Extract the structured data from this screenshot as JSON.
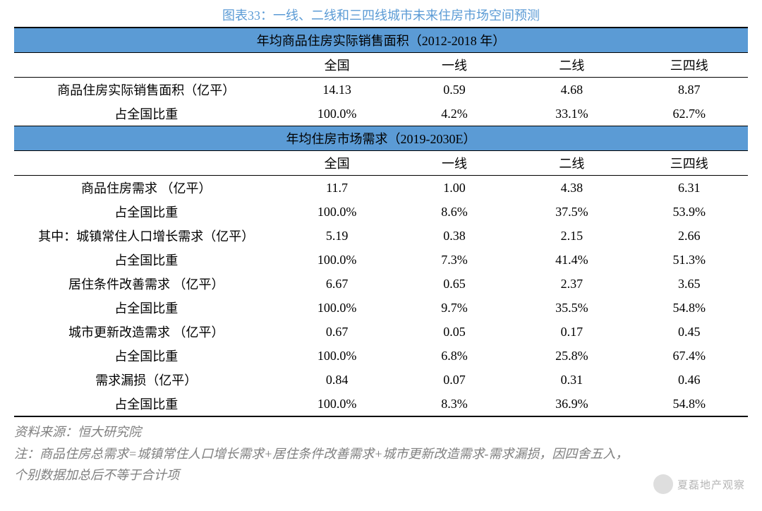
{
  "title": "图表33：一线、二线和三四线城市未来住房市场空间预测",
  "colors": {
    "header_bg": "#5b9bd5",
    "title_color": "#5b9bd5",
    "text": "#000000",
    "source_text": "#808080",
    "background": "#ffffff"
  },
  "columns": [
    "",
    "全国",
    "一线",
    "二线",
    "三四线"
  ],
  "section1": {
    "header": "年均商品住房实际销售面积（2012-2018 年）",
    "rows": [
      {
        "label": "商品住房实际销售面积（亿平）",
        "vals": [
          "14.13",
          "0.59",
          "4.68",
          "8.87"
        ]
      },
      {
        "label": "占全国比重",
        "vals": [
          "100.0%",
          "4.2%",
          "33.1%",
          "62.7%"
        ]
      }
    ]
  },
  "section2": {
    "header": "年均住房市场需求（2019-2030E）",
    "rows": [
      {
        "label": "商品住房需求 （亿平）",
        "vals": [
          "11.7",
          "1.00",
          "4.38",
          "6.31"
        ]
      },
      {
        "label": "占全国比重",
        "vals": [
          "100.0%",
          "8.6%",
          "37.5%",
          "53.9%"
        ]
      },
      {
        "label": "其中：城镇常住人口增长需求（亿平）",
        "vals": [
          "5.19",
          "0.38",
          "2.15",
          "2.66"
        ]
      },
      {
        "label": "占全国比重",
        "vals": [
          "100.0%",
          "7.3%",
          "41.4%",
          "51.3%"
        ]
      },
      {
        "label": "居住条件改善需求 （亿平）",
        "vals": [
          "6.67",
          "0.65",
          "2.37",
          "3.65"
        ]
      },
      {
        "label": "占全国比重",
        "vals": [
          "100.0%",
          "9.7%",
          "35.5%",
          "54.8%"
        ]
      },
      {
        "label": "城市更新改造需求 （亿平）",
        "vals": [
          "0.67",
          "0.05",
          "0.17",
          "0.45"
        ]
      },
      {
        "label": "占全国比重",
        "vals": [
          "100.0%",
          "6.8%",
          "25.8%",
          "67.4%"
        ]
      },
      {
        "label": "需求漏损（亿平）",
        "vals": [
          "0.84",
          "0.07",
          "0.31",
          "0.46"
        ]
      },
      {
        "label": "占全国比重",
        "vals": [
          "100.0%",
          "8.3%",
          "36.9%",
          "54.8%"
        ]
      }
    ]
  },
  "source": {
    "line1": "资料来源：恒大研究院",
    "line2": "注：商品住房总需求=城镇常住人口增长需求+居住条件改善需求+城市更新改造需求-需求漏损，因四舍五入，",
    "line3": "个别数据加总后不等于合计项"
  },
  "watermark": "夏磊地产观察"
}
